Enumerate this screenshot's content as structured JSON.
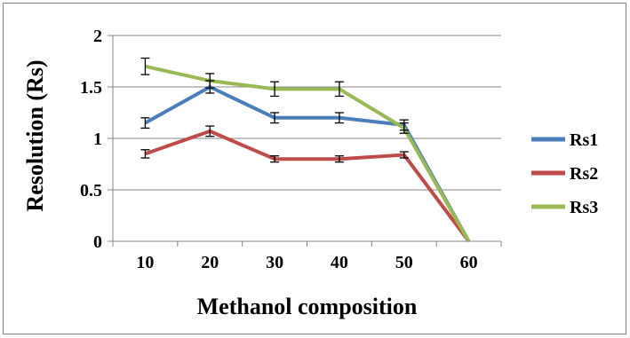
{
  "chart_data": {
    "type": "line",
    "categories": [
      10,
      20,
      30,
      40,
      50,
      60
    ],
    "xlabel": "Methanol composition",
    "ylabel": "Resolution (Rs)",
    "ylim": [
      0,
      2
    ],
    "yticks": [
      0,
      0.5,
      1,
      1.5,
      2
    ],
    "ytick_labels": [
      "0",
      "0.5",
      "1",
      "1.5",
      "2"
    ],
    "grid": "horizontal",
    "legend_position": "right",
    "series": [
      {
        "name": "Rs1",
        "color": "#4a7ebb",
        "values": [
          1.15,
          1.5,
          1.2,
          1.2,
          1.13,
          0
        ],
        "errors": [
          0.05,
          0.06,
          0.05,
          0.05,
          0.05,
          0
        ]
      },
      {
        "name": "Rs2",
        "color": "#be4b48",
        "values": [
          0.85,
          1.07,
          0.8,
          0.8,
          0.84,
          0
        ],
        "errors": [
          0.04,
          0.05,
          0.03,
          0.03,
          0.03,
          0
        ]
      },
      {
        "name": "Rs3",
        "color": "#98b954",
        "values": [
          1.7,
          1.56,
          1.48,
          1.48,
          1.1,
          0
        ],
        "errors": [
          0.08,
          0.07,
          0.07,
          0.07,
          0.05,
          0
        ]
      }
    ]
  }
}
